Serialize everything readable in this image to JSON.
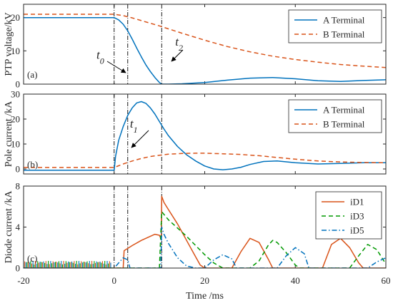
{
  "colors": {
    "a": "#0072BD",
    "b": "#D95319",
    "id3": "#009900",
    "id5": "#0072BD",
    "axis": "#262626",
    "guide": "#000000"
  },
  "xaxis": {
    "label": "Time /ms",
    "ticks": [
      "-20",
      "0",
      "20",
      "40",
      "60"
    ],
    "range": [
      -20,
      60
    ]
  },
  "guides_x": [
    0,
    3,
    10.5
  ],
  "chart_data": [
    {
      "type": "line",
      "panel_label": "(a)",
      "ylabel": "PTP voltage/kV",
      "ylim": [
        0,
        24
      ],
      "yticks": [
        "0",
        "10",
        "20"
      ],
      "legend_position": "top-right",
      "series": [
        {
          "name": "A Terminal",
          "style": "solid",
          "color": "#0072BD",
          "x": [
            -20,
            0,
            1,
            2,
            3,
            4,
            5,
            6,
            7,
            8,
            9,
            10,
            10.5,
            12,
            15,
            20,
            25,
            30,
            35,
            40,
            45,
            50,
            55,
            60
          ],
          "y": [
            20,
            20,
            19.3,
            18,
            16,
            13.5,
            10.8,
            8.2,
            5.8,
            3.8,
            2.0,
            0.5,
            0,
            0,
            0.1,
            0.5,
            1.2,
            1.8,
            2.0,
            1.6,
            1.0,
            0.8,
            1.1,
            1.3
          ]
        },
        {
          "name": "B Terminal",
          "style": "dashed",
          "color": "#D95319",
          "x": [
            -20,
            0,
            2,
            4,
            6,
            8,
            10,
            12,
            15,
            20,
            25,
            30,
            35,
            40,
            45,
            50,
            55,
            60
          ],
          "y": [
            21,
            21,
            20.6,
            19.9,
            19.1,
            18.3,
            17.5,
            16.6,
            15.3,
            13.2,
            11.3,
            9.7,
            8.4,
            7.4,
            6.6,
            5.9,
            5.4,
            5.0
          ]
        }
      ],
      "annotations": [
        {
          "base": "t",
          "sub": "0",
          "x": -3.9,
          "y": 7.6
        },
        {
          "base": "t",
          "sub": "2",
          "x": 13.5,
          "y": 11.6
        }
      ]
    },
    {
      "type": "line",
      "panel_label": "(b)",
      "ylabel": "Pole current /kA",
      "ylim": [
        -2,
        30
      ],
      "yticks": [
        "0",
        "10",
        "20",
        "30"
      ],
      "legend_position": "top-right",
      "series": [
        {
          "name": "A Terminal",
          "style": "solid",
          "color": "#0072BD",
          "x": [
            -20,
            0,
            0.3,
            1,
            2,
            3,
            4,
            5,
            6,
            7,
            8,
            9,
            10,
            11,
            12,
            14,
            16,
            18,
            20,
            22,
            24,
            26,
            28,
            30,
            33,
            36,
            40,
            45,
            50,
            55,
            60
          ],
          "y": [
            -0.5,
            -0.5,
            5,
            11.5,
            17,
            21.5,
            24.5,
            26.5,
            27,
            26.3,
            24.5,
            22,
            19,
            16,
            13.3,
            9,
            5.7,
            3.2,
            1.2,
            0,
            -0.3,
            0,
            0.7,
            1.8,
            3.0,
            3.2,
            2.5,
            2.0,
            2.2,
            2.5,
            2.5
          ]
        },
        {
          "name": "B Terminal",
          "style": "dashed",
          "color": "#D95319",
          "x": [
            -20,
            0,
            2,
            4,
            6,
            8,
            10,
            12,
            15,
            18,
            20,
            24,
            28,
            32,
            36,
            40,
            45,
            50,
            55,
            60
          ],
          "y": [
            0.6,
            0.6,
            2.0,
            3.2,
            4.2,
            5.0,
            5.5,
            5.9,
            6.2,
            6.3,
            6.3,
            6.1,
            5.8,
            5.3,
            4.6,
            3.9,
            3.2,
            2.8,
            2.6,
            2.5
          ]
        }
      ],
      "annotations": [
        {
          "base": "t",
          "sub": "1",
          "x": 3.5,
          "y": 16.6
        }
      ]
    },
    {
      "type": "line",
      "panel_label": "(c)",
      "ylabel": "Diode current /kA",
      "ylim": [
        0,
        8
      ],
      "yticks": [
        "0",
        "4",
        "8"
      ],
      "legend_position": "top-right",
      "series": [
        {
          "name": "iD1",
          "style": "solid",
          "color": "#D95319",
          "x": [
            -20,
            0,
            2,
            2.2,
            4,
            6,
            8,
            9,
            10,
            10.4,
            10.5,
            11,
            12,
            14,
            16,
            18,
            19,
            20,
            22,
            24,
            25,
            26,
            28,
            30,
            32,
            34,
            35,
            36,
            38,
            40,
            42,
            44,
            45,
            46,
            48,
            50,
            52,
            54,
            55,
            56,
            58,
            60
          ],
          "y": [
            0,
            0,
            0,
            1.7,
            2.2,
            2.7,
            3.1,
            3.3,
            3.2,
            2.8,
            7.0,
            6.4,
            5.7,
            4.3,
            2.7,
            1.1,
            0.3,
            0,
            0,
            0,
            0,
            0,
            1.6,
            2.9,
            2.5,
            0.9,
            0,
            0,
            0,
            0,
            0,
            0,
            0,
            0,
            2.3,
            2.9,
            2.0,
            0.5,
            0,
            0,
            0,
            0
          ]
        },
        {
          "name": "iD3",
          "style": "dashed",
          "color": "#009900",
          "x": [
            -20,
            10,
            10.5,
            12,
            14,
            16,
            18,
            20,
            22,
            24,
            25,
            26,
            28,
            30,
            32,
            34,
            35,
            36,
            38,
            40,
            41,
            42,
            44,
            46,
            48,
            50,
            52,
            54,
            56,
            58,
            60
          ],
          "y": [
            0,
            0,
            5.5,
            4.7,
            3.9,
            3.1,
            2.2,
            1.3,
            0.5,
            0,
            0,
            0,
            0,
            0,
            0.7,
            2.2,
            2.7,
            2.5,
            1.5,
            0.3,
            0,
            0,
            0,
            0,
            0,
            0,
            0,
            1.2,
            2.3,
            1.8,
            0.4
          ]
        },
        {
          "name": "iD5",
          "style": "dashdot",
          "color": "#0072BD",
          "x": [
            -20,
            0,
            1,
            2,
            3,
            3.5,
            10.3,
            10.5,
            11,
            12,
            14,
            16,
            18,
            19,
            20,
            22,
            24,
            26,
            27,
            28,
            30,
            32,
            36,
            38,
            40,
            42,
            43,
            44,
            46,
            48,
            56,
            58,
            60
          ],
          "y": [
            0,
            0,
            0.5,
            1.0,
            0.8,
            0,
            0,
            4.0,
            3.3,
            2.4,
            1.0,
            0.2,
            0,
            0,
            0,
            0.8,
            1.3,
            0.9,
            0,
            0,
            0,
            0,
            0,
            1.2,
            2.0,
            1.4,
            0,
            0,
            0,
            0,
            0,
            0.6,
            1.0
          ]
        }
      ]
    }
  ]
}
